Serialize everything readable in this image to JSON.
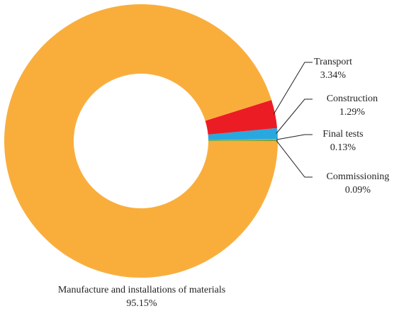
{
  "chart_data": {
    "type": "pie",
    "categories": [
      "Manufacture and installations of materials",
      "Transport",
      "Construction",
      "Final tests",
      "Commissioning"
    ],
    "values": [
      95.15,
      3.34,
      1.29,
      0.13,
      0.09
    ],
    "value_labels": [
      "95.15%",
      "3.34%",
      "1.29%",
      "0.13%",
      "0.09%"
    ],
    "colors": [
      "#f9ae3c",
      "#ec1c24",
      "#29a8e0",
      "#8dc63f",
      "#6d8b3a"
    ]
  }
}
